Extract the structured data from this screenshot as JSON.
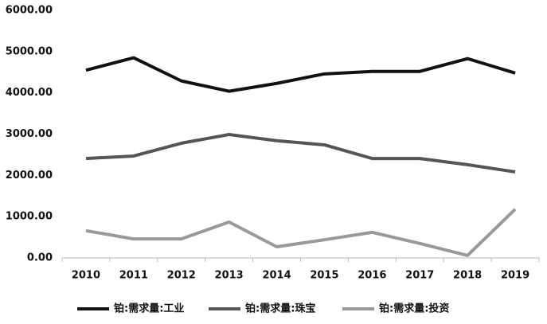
{
  "chart_data": {
    "type": "line",
    "categories": [
      "2010",
      "2011",
      "2012",
      "2013",
      "2014",
      "2015",
      "2016",
      "2017",
      "2018",
      "2019"
    ],
    "series": [
      {
        "name": "铂:需求量:工业",
        "color": "#111111",
        "values": [
          4550,
          4850,
          4290,
          4040,
          4230,
          4460,
          4520,
          4520,
          4830,
          4480
        ]
      },
      {
        "name": "铂:需求量:珠宝",
        "color": "#555555",
        "values": [
          2410,
          2470,
          2780,
          2990,
          2840,
          2740,
          2410,
          2410,
          2260,
          2085
        ]
      },
      {
        "name": "铂:需求量:投资",
        "color": "#999999",
        "values": [
          660,
          460,
          460,
          870,
          270,
          440,
          620,
          350,
          60,
          1180
        ]
      }
    ],
    "ylim": [
      0,
      6000
    ],
    "yticks": [
      {
        "value": 0,
        "label": "0.00"
      },
      {
        "value": 1000,
        "label": "1000.00"
      },
      {
        "value": 2000,
        "label": "2000.00"
      },
      {
        "value": 3000,
        "label": "3000.00"
      },
      {
        "value": 4000,
        "label": "4000.00"
      },
      {
        "value": 5000,
        "label": "5000.00"
      },
      {
        "value": 6000,
        "label": "6000.00"
      }
    ],
    "grid": false
  }
}
